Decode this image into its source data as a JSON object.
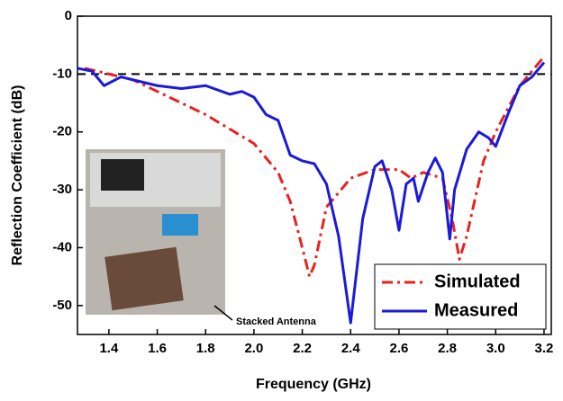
{
  "chart_data": {
    "type": "line",
    "xlabel": "Frequency (GHz)",
    "ylabel": "Reflection Coefficient (dB)",
    "xlim": [
      1.27,
      3.23
    ],
    "ylim": [
      -55,
      0
    ],
    "xticks": [
      1.4,
      1.6,
      1.8,
      {
        "value": 2,
        "label": "2.0"
      },
      2.2,
      2.4,
      2.6,
      2.8,
      {
        "value": 3,
        "label": "3.0"
      },
      3.2
    ],
    "yticks": [
      0,
      -10,
      -20,
      -30,
      -40,
      -50
    ],
    "reference_line": {
      "value": -10,
      "color": "#000000"
    },
    "legend": "lower right",
    "annotation": "Stacked Antenna",
    "series": [
      {
        "name": "Simulated",
        "color": "#e8221e",
        "dash": "dashdot",
        "x": [
          1.3,
          1.4,
          1.5,
          1.6,
          1.7,
          1.8,
          1.9,
          2.0,
          2.1,
          2.15,
          2.2,
          2.23,
          2.25,
          2.3,
          2.4,
          2.5,
          2.6,
          2.65,
          2.7,
          2.78,
          2.82,
          2.85,
          2.88,
          2.95,
          3.0,
          3.1,
          3.2
        ],
        "values": [
          -9,
          -10,
          -11,
          -13,
          -15,
          -17,
          -19.5,
          -22,
          -27,
          -32,
          -40,
          -45,
          -43,
          -33,
          -28,
          -26.5,
          -26.5,
          -28,
          -27,
          -28,
          -35,
          -42,
          -38,
          -25,
          -20,
          -12,
          -7
        ]
      },
      {
        "name": "Measured",
        "color": "#1a1adc",
        "dash": "solid",
        "x": [
          1.27,
          1.33,
          1.38,
          1.45,
          1.6,
          1.7,
          1.8,
          1.9,
          1.95,
          2.0,
          2.05,
          2.1,
          2.15,
          2.2,
          2.25,
          2.3,
          2.35,
          2.4,
          2.45,
          2.5,
          2.53,
          2.57,
          2.6,
          2.63,
          2.66,
          2.68,
          2.72,
          2.75,
          2.78,
          2.81,
          2.83,
          2.88,
          2.93,
          2.97,
          3.0,
          3.05,
          3.1,
          3.15,
          3.2
        ],
        "values": [
          -9,
          -9.5,
          -12,
          -10.5,
          -12,
          -12.5,
          -12,
          -13.5,
          -13,
          -14,
          -17,
          -18,
          -24,
          -25,
          -25.5,
          -29,
          -38,
          -53,
          -35,
          -26,
          -25,
          -30,
          -37,
          -29,
          -28,
          -32,
          -27,
          -24.5,
          -27,
          -38.5,
          -30,
          -23,
          -20,
          -21,
          -22.5,
          -17,
          -12,
          -10.5,
          -8
        ]
      }
    ]
  }
}
